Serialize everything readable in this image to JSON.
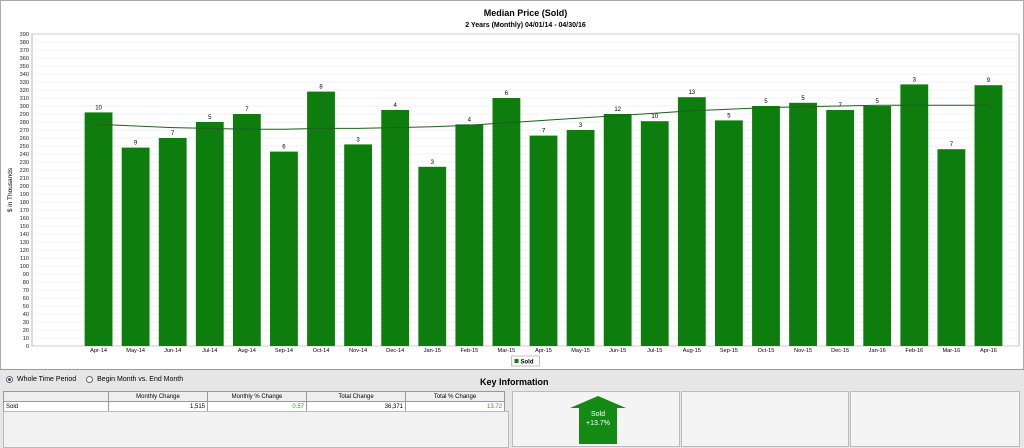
{
  "chart_data": {
    "type": "bar",
    "title": "Median Price (Sold)",
    "subtitle": "2 Years (Monthly) 04/01/14 - 04/30/16",
    "ylabel": "$ in Thousands",
    "ylim": [
      0,
      390
    ],
    "ytick_step": 10,
    "grid": true,
    "legend_position": "bottom-center",
    "categories": [
      "Apr-14",
      "May-14",
      "Jun-14",
      "Jul-14",
      "Aug-14",
      "Sep-14",
      "Oct-14",
      "Nov-14",
      "Dec-14",
      "Jan-15",
      "Feb-15",
      "Mar-15",
      "Apr-15",
      "May-15",
      "Jun-15",
      "Jul-15",
      "Aug-15",
      "Sep-15",
      "Oct-15",
      "Nov-15",
      "Dec-15",
      "Jan-16",
      "Feb-16",
      "Mar-16",
      "Apr-16"
    ],
    "series": [
      {
        "name": "Sold",
        "color": "#0d7d0d",
        "values": [
          292,
          248,
          260,
          280,
          290,
          243,
          318,
          252,
          295,
          224,
          277,
          310,
          263,
          270,
          290,
          281,
          311,
          282,
          300,
          304,
          295,
          300,
          327,
          246,
          326
        ],
        "labels": [
          "10",
          "9",
          "7",
          "5",
          "7",
          "6",
          "8",
          "3",
          "4",
          "3",
          "4",
          "6",
          "7",
          "3",
          "12",
          "10",
          "13",
          "5",
          "5",
          "5",
          "7",
          "5",
          "3",
          "7",
          "9"
        ]
      }
    ],
    "trend": {
      "color": "#1f5e1f",
      "values": [
        277,
        275,
        273,
        272,
        271,
        271,
        272,
        272,
        273,
        274,
        276,
        279,
        282,
        285,
        288,
        291,
        294,
        296,
        298,
        299,
        300,
        301,
        301,
        301,
        301
      ]
    }
  },
  "bottom": {
    "radio_whole": "Whole Time Period",
    "radio_begin": "Begin Month vs. End Month",
    "key_title": "Key Information",
    "headers": [
      "",
      "Monthly Change",
      "Monthly % Change",
      "Total Change",
      "Total % Change"
    ],
    "row": [
      "Sold",
      "1,515",
      "0.57",
      "36,371",
      "13.72"
    ],
    "badge_label": "Sold",
    "badge_value": "+13.7%",
    "badge_color": "#138a13"
  }
}
